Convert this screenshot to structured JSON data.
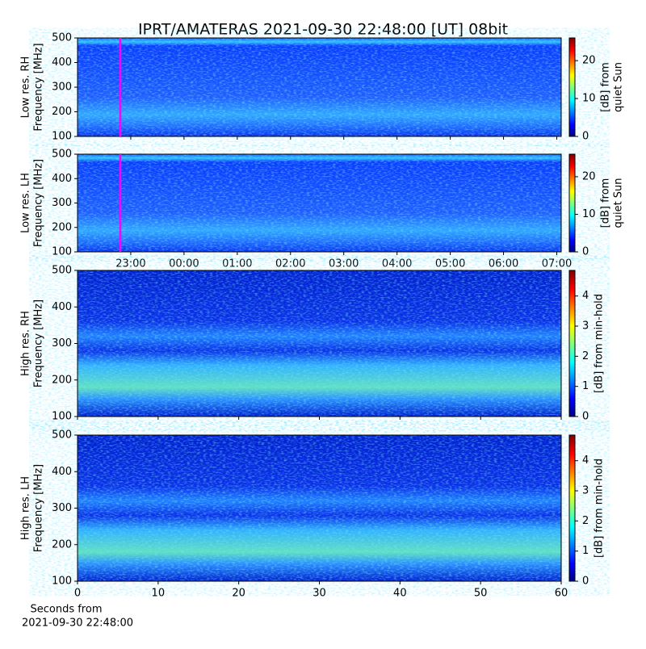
{
  "title": "IPRT/AMATERAS 2021-09-30 22:48:00 [UT]   08bit",
  "chart_data": [
    {
      "type": "heatmap",
      "ylabel": [
        "Low res. RH",
        "Frequency [MHz]"
      ],
      "xlim": [
        "22:00",
        "07:05"
      ],
      "ylim": [
        100,
        500
      ],
      "yticks": [
        100,
        200,
        300,
        400,
        500
      ],
      "clabel": [
        "[dB] from",
        "quiet Sun"
      ],
      "clim": [
        0,
        26
      ],
      "cticks": [
        0,
        10,
        20
      ]
    },
    {
      "type": "heatmap",
      "ylabel": [
        "Low res. LH",
        "Frequency [MHz]"
      ],
      "xlim": [
        "22:00",
        "07:05"
      ],
      "xticks": [
        "23:00",
        "00:00",
        "01:00",
        "02:00",
        "03:00",
        "04:00",
        "05:00",
        "06:00",
        "07:00"
      ],
      "ylim": [
        100,
        500
      ],
      "yticks": [
        100,
        200,
        300,
        400,
        500
      ],
      "clabel": [
        "[dB] from",
        "quiet Sun"
      ],
      "clim": [
        0,
        26
      ],
      "cticks": [
        0,
        10,
        20
      ]
    },
    {
      "type": "heatmap",
      "ylabel": [
        "High res. RH",
        "Frequency [MHz]"
      ],
      "xlim": [
        0,
        60
      ],
      "ylim": [
        100,
        500
      ],
      "yticks": [
        100,
        200,
        300,
        400,
        500
      ],
      "clabel": [
        "[dB] from min-hold"
      ],
      "clim": [
        0,
        4.85
      ],
      "cticks": [
        0,
        1,
        2,
        3,
        4
      ]
    },
    {
      "type": "heatmap",
      "ylabel": [
        "High res. LH",
        "Frequency [MHz]"
      ],
      "xlim": [
        0,
        60
      ],
      "xticks": [
        0,
        10,
        20,
        30,
        40,
        50,
        60
      ],
      "xlabel": [
        "Seconds from",
        "2021-09-30 22:48:00"
      ],
      "ylim": [
        100,
        500
      ],
      "yticks": [
        100,
        200,
        300,
        400,
        500
      ],
      "clabel": [
        "[dB] from min-hold"
      ],
      "clim": [
        0,
        4.85
      ],
      "cticks": [
        0,
        1,
        2,
        3,
        4
      ]
    }
  ]
}
